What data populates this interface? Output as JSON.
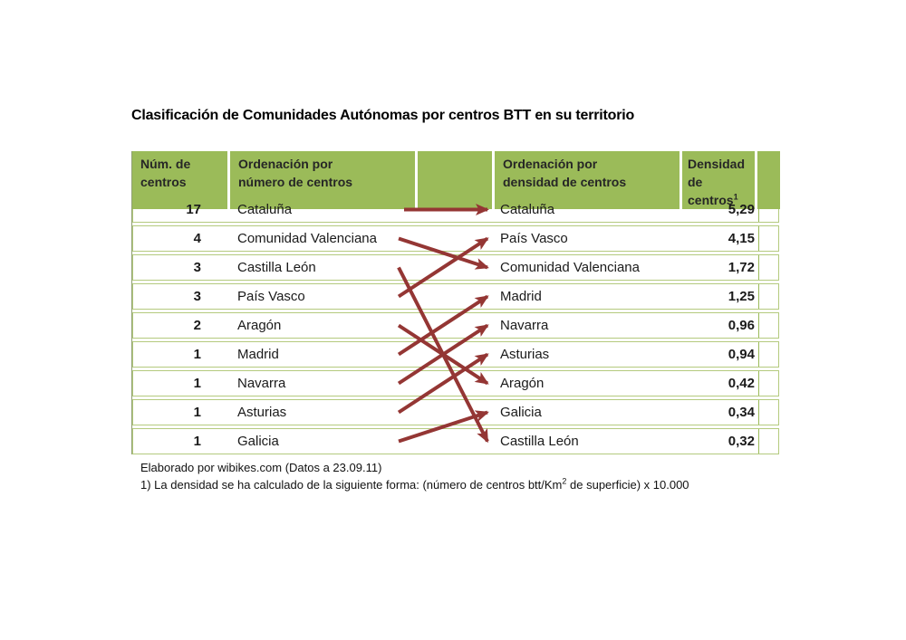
{
  "title": "Clasificación de Comunidades Autónomas por centros BTT en su territorio",
  "table": {
    "header": {
      "num": "Núm. de\ncentros",
      "by_number": "Ordenación por\nnúmero de centros",
      "by_density": "Ordenación por\ndensidad de centros",
      "density_line1": "Densidad",
      "density_line2": "de centros",
      "density_sup": "1"
    },
    "rows": [
      {
        "num": "17",
        "left": "Cataluña",
        "right": "Cataluña",
        "density": "5,29"
      },
      {
        "num": "4",
        "left": "Comunidad Valenciana",
        "right": "País Vasco",
        "density": "4,15"
      },
      {
        "num": "3",
        "left": "Castilla León",
        "right": "Comunidad Valenciana",
        "density": "1,72"
      },
      {
        "num": "3",
        "left": "País Vasco",
        "right": "Madrid",
        "density": "1,25"
      },
      {
        "num": "2",
        "left": "Aragón",
        "right": "Navarra",
        "density": "0,96"
      },
      {
        "num": "1",
        "left": "Madrid",
        "right": "Asturias",
        "density": "0,94"
      },
      {
        "num": "1",
        "left": "Navarra",
        "right": "Aragón",
        "density": "0,42"
      },
      {
        "num": "1",
        "left": "Asturias",
        "right": "Galicia",
        "density": "0,34"
      },
      {
        "num": "1",
        "left": "Galicia",
        "right": "Castilla León",
        "density": "0,32"
      }
    ],
    "arrows": [
      {
        "from": 1,
        "to": 1
      },
      {
        "from": 2,
        "to": 3
      },
      {
        "from": 3,
        "to": 9
      },
      {
        "from": 4,
        "to": 2
      },
      {
        "from": 5,
        "to": 7
      },
      {
        "from": 6,
        "to": 4
      },
      {
        "from": 7,
        "to": 5
      },
      {
        "from": 8,
        "to": 6
      },
      {
        "from": 9,
        "to": 8
      }
    ]
  },
  "footer": {
    "source": "Elaborado por wibikes.com (Datos a 23.09.11)",
    "note_pre": "1) La densidad se ha calculado de la siguiente forma: (número de centros btt/Km",
    "note_sup": "2",
    "note_post": " de superficie) x 10.000"
  },
  "colors": {
    "header_bg": "#9bbb59",
    "row_border": "#b4ca7e",
    "arrow": "#943634"
  }
}
